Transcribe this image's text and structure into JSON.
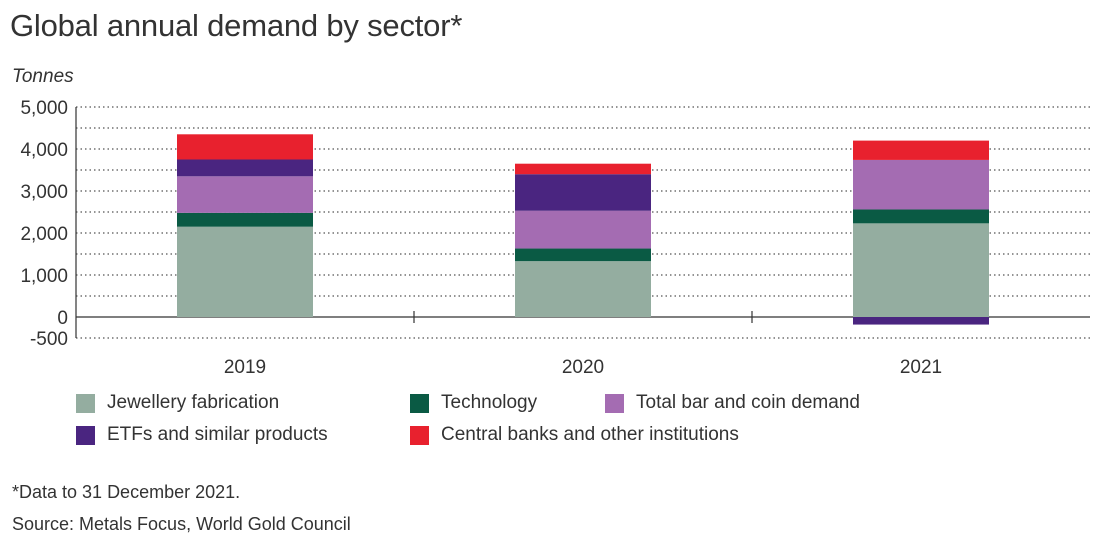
{
  "title": "Global annual demand by sector*",
  "unit_label": "Tonnes",
  "footnote": "*Data to 31 December 2021.",
  "source": "Source: Metals Focus, World Gold Council",
  "chart_data": {
    "type": "bar",
    "stacked": true,
    "categories": [
      "2019",
      "2020",
      "2021"
    ],
    "ylim": [
      -500,
      5000
    ],
    "yticks": [
      -500,
      0,
      1000,
      2000,
      3000,
      4000,
      5000
    ],
    "ytick_labels": [
      "-500",
      "0",
      "1,000",
      "2,000",
      "3,000",
      "4,000",
      "5,000"
    ],
    "grid": "dotted horizontal",
    "legend_position": "bottom",
    "series": [
      {
        "name": "Jewellery fabrication",
        "color": "#94ada0",
        "values": [
          2150,
          1330,
          2230
        ]
      },
      {
        "name": "Technology",
        "color": "#0a5a44",
        "values": [
          330,
          300,
          330
        ]
      },
      {
        "name": "Total bar and coin demand",
        "color": "#a46cb2",
        "values": [
          870,
          900,
          1180
        ]
      },
      {
        "name": "ETFs and similar products",
        "color": "#4a2580",
        "values": [
          400,
          870,
          -180
        ]
      },
      {
        "name": "Central banks and other institutions",
        "color": "#e8212e",
        "values": [
          600,
          250,
          460
        ]
      }
    ]
  }
}
